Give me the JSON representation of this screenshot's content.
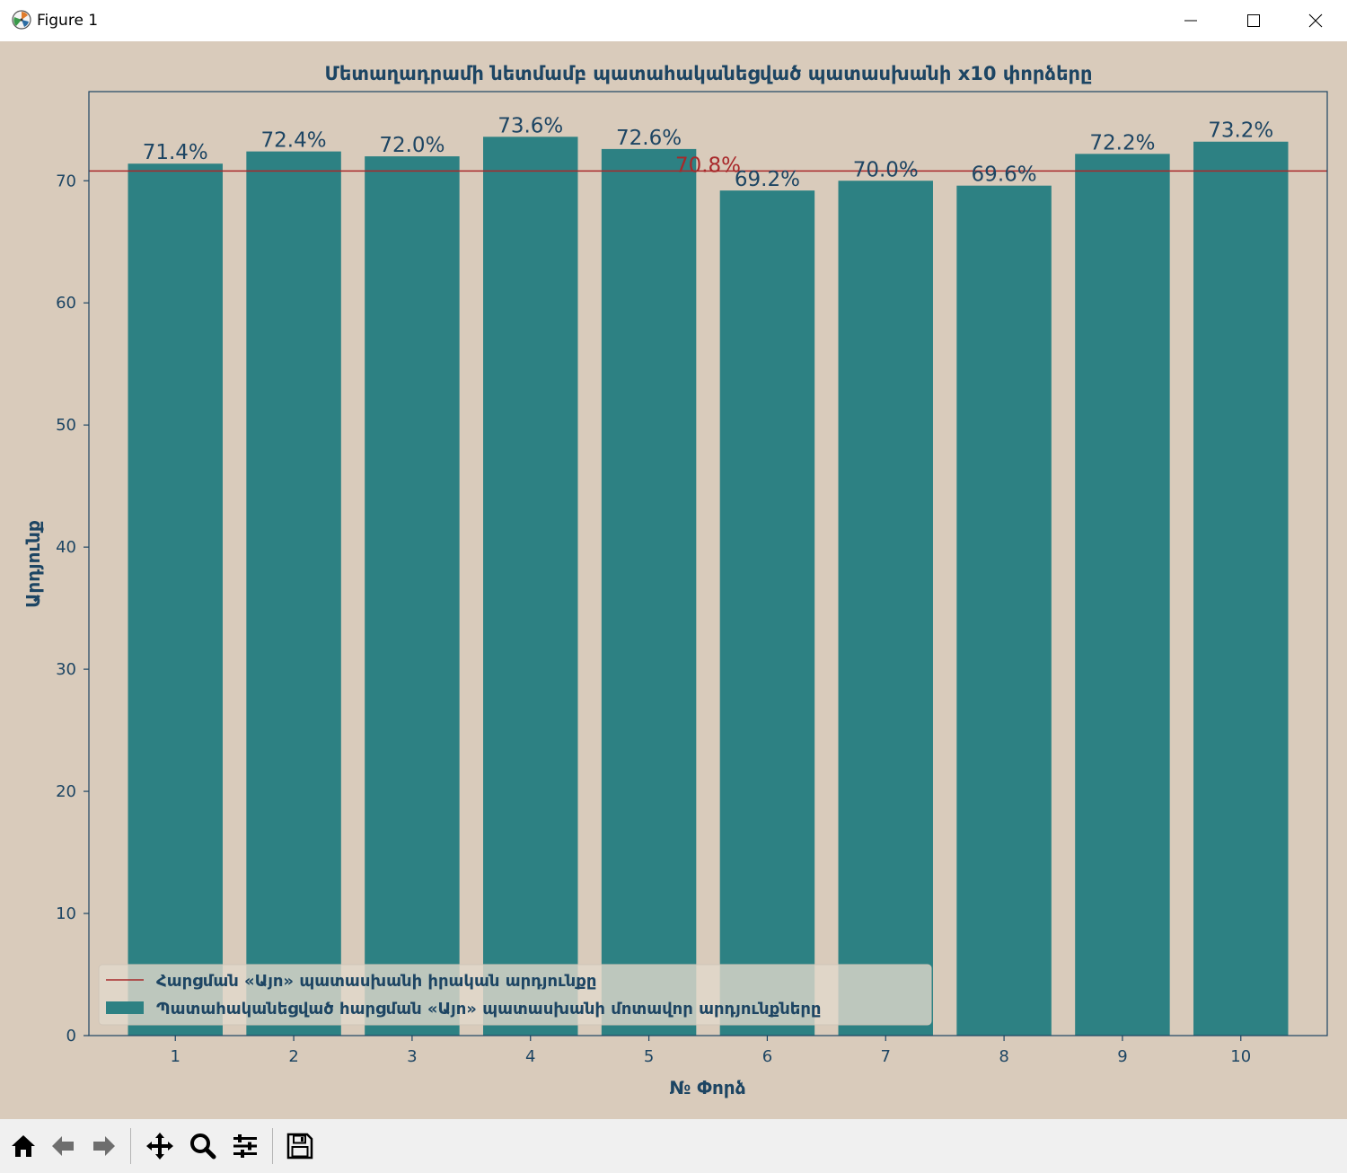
{
  "window": {
    "title": "Figure 1"
  },
  "toolbar": {
    "buttons": [
      {
        "name": "home-button",
        "icon": "home-icon"
      },
      {
        "name": "back-button",
        "icon": "arrow-left-icon"
      },
      {
        "name": "forward-button",
        "icon": "arrow-right-icon"
      },
      {
        "name": "pan-button",
        "icon": "move-icon"
      },
      {
        "name": "zoom-button",
        "icon": "magnifier-icon"
      },
      {
        "name": "configure-subplots-button",
        "icon": "sliders-icon"
      },
      {
        "name": "save-button",
        "icon": "floppy-disk-icon"
      }
    ]
  },
  "colors": {
    "figure_bg": "#d9cbbb",
    "bar": "#2d8183",
    "reference_line": "#a8282a",
    "axis_text": "#1d4563"
  },
  "chart_data": {
    "type": "bar",
    "title": "Մետաղադրամի նետմամբ պատահականեցված պատասխանի x10 փորձերը",
    "xlabel": "№ Փորձ",
    "ylabel": "Արդյունք",
    "categories": [
      "1",
      "2",
      "3",
      "4",
      "5",
      "6",
      "7",
      "8",
      "9",
      "10"
    ],
    "values": [
      71.4,
      72.4,
      72.0,
      73.6,
      72.6,
      69.2,
      70.0,
      69.6,
      72.2,
      73.2
    ],
    "data_labels": [
      "71.4%",
      "72.4%",
      "72.0%",
      "73.6%",
      "72.6%",
      "69.2%",
      "70.0%",
      "69.6%",
      "72.2%",
      "73.2%"
    ],
    "reference_line": {
      "value": 70.8,
      "label": "70.8%"
    },
    "ylim": [
      0,
      77.3
    ],
    "yticks": [
      0,
      10,
      20,
      30,
      40,
      50,
      60,
      70
    ],
    "grid": false,
    "legend": {
      "placement": "lower-left",
      "entries": [
        "Հարցման «Այո» պատասխանի իրական արդյունքը",
        "Պատահականեցված հարցման «Այո» պատասխանի մոտավոր արդյունքները"
      ]
    }
  }
}
